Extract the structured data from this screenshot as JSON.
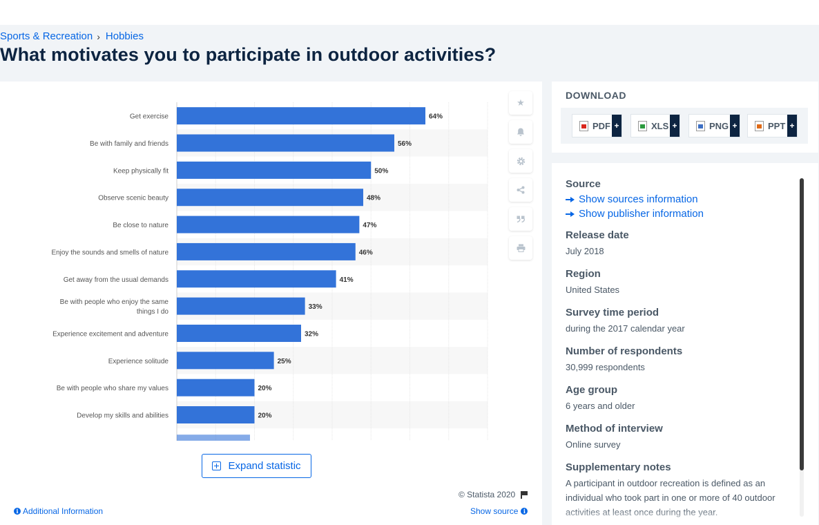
{
  "breadcrumb": {
    "category": "Sports & Recreation",
    "separator": "›",
    "subcategory": "Hobbies"
  },
  "page_title": "What motivates you to participate in outdoor activities?",
  "chart_data": {
    "type": "bar",
    "orientation": "horizontal",
    "title": "",
    "xlabel": "",
    "ylabel": "",
    "xlim": [
      0,
      80
    ],
    "grid": true,
    "bar_color": "#3373d9",
    "value_suffix": "%",
    "categories": [
      "Get exercise",
      "Be with family and friends",
      "Keep physically fit",
      "Observe scenic beauty",
      "Be close to nature",
      "Enjoy the sounds and smells of nature",
      "Get away from the usual demands",
      "Be with people who enjoy the same things I do",
      "Experience excitement and adventure",
      "Experience solitude",
      "Be with people who share my values",
      "Develop my skills and abilities"
    ],
    "values": [
      64,
      56,
      50,
      48,
      47,
      46,
      41,
      33,
      32,
      25,
      20,
      20
    ],
    "data_labels": [
      "64%",
      "56%",
      "50%",
      "48%",
      "47%",
      "46%",
      "41%",
      "33%",
      "32%",
      "25%",
      "20%",
      "20%"
    ]
  },
  "chart_actions": {
    "icons": [
      "star-icon",
      "bell-icon",
      "gear-icon",
      "share-icon",
      "quote-icon",
      "print-icon"
    ]
  },
  "expand_label": "Expand statistic",
  "copyright": "© Statista 2020",
  "additional_info_label": "Additional Information",
  "show_source_label": "Show source",
  "download": {
    "title": "DOWNLOAD",
    "buttons": [
      "PDF",
      "XLS",
      "PNG",
      "PPT"
    ],
    "plus": "+"
  },
  "details": {
    "source_label": "Source",
    "show_sources": "Show sources information",
    "show_publisher": "Show publisher information",
    "release_date_label": "Release date",
    "release_date": "July 2018",
    "region_label": "Region",
    "region": "United States",
    "survey_period_label": "Survey time period",
    "survey_period": "during the 2017 calendar year",
    "respondents_label": "Number of respondents",
    "respondents": "30,999 respondents",
    "age_group_label": "Age group",
    "age_group": "6 years and older",
    "method_label": "Method of interview",
    "method": "Online survey",
    "notes_label": "Supplementary notes",
    "notes": "A participant in outdoor recreation is defined as an individual who took part in one or more of 40 outdoor activities at least once during the year."
  }
}
